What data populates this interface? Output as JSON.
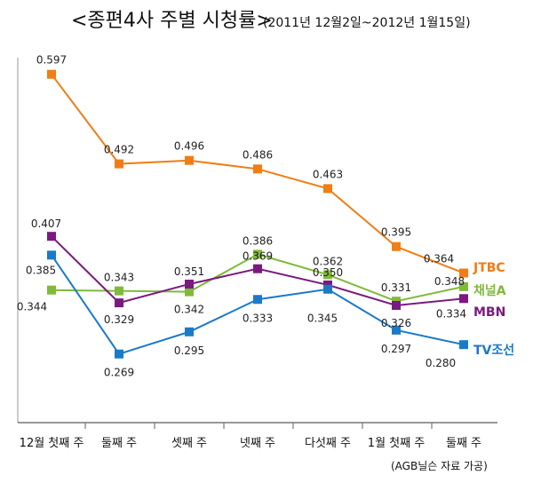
{
  "chart_data": {
    "type": "line",
    "title": "<종편4사 주별 시청률>",
    "subtitle": "(2011년 12월2일~2012년 1월15일)",
    "categories": [
      "12월 첫째 주",
      "둘째 주",
      "셋째 주",
      "넷째 주",
      "다섯째 주",
      "1월 첫째 주",
      "둘째 주"
    ],
    "ylim": [
      0.2,
      0.63
    ],
    "grid": false,
    "legend": "right-end-of-lines",
    "source_note": "(AGB닐슨 자료 가공)",
    "series": [
      {
        "name": "JTBC",
        "color": "#f07d15",
        "values": [
          0.597,
          0.492,
          0.496,
          0.486,
          0.463,
          0.395,
          0.364
        ],
        "labels": [
          "0.597",
          "0.492",
          "0.496",
          "0.486",
          "0.463",
          "0.395",
          "0.364"
        ]
      },
      {
        "name": "채널A",
        "color": "#7fba3a",
        "values": [
          0.344,
          0.343,
          0.342,
          0.386,
          0.362,
          0.331,
          0.348
        ],
        "labels": [
          "0.344",
          "0.343",
          "0.342",
          "0.386",
          "0.362",
          "0.331",
          "0.348"
        ]
      },
      {
        "name": "MBN",
        "color": "#7a1a7e",
        "values": [
          0.407,
          0.329,
          0.351,
          0.369,
          0.35,
          0.326,
          0.334
        ],
        "labels": [
          "0.407",
          "0.329",
          "0.351",
          "0.369",
          "0.350",
          "0.326",
          "0.334"
        ]
      },
      {
        "name": "TV조선",
        "color": "#1a7ac8",
        "values": [
          0.385,
          0.269,
          0.295,
          0.333,
          0.345,
          0.297,
          0.28
        ],
        "labels": [
          "0.385",
          "0.269",
          "0.295",
          "0.333",
          "0.345",
          "0.297",
          "0.280"
        ]
      }
    ]
  }
}
